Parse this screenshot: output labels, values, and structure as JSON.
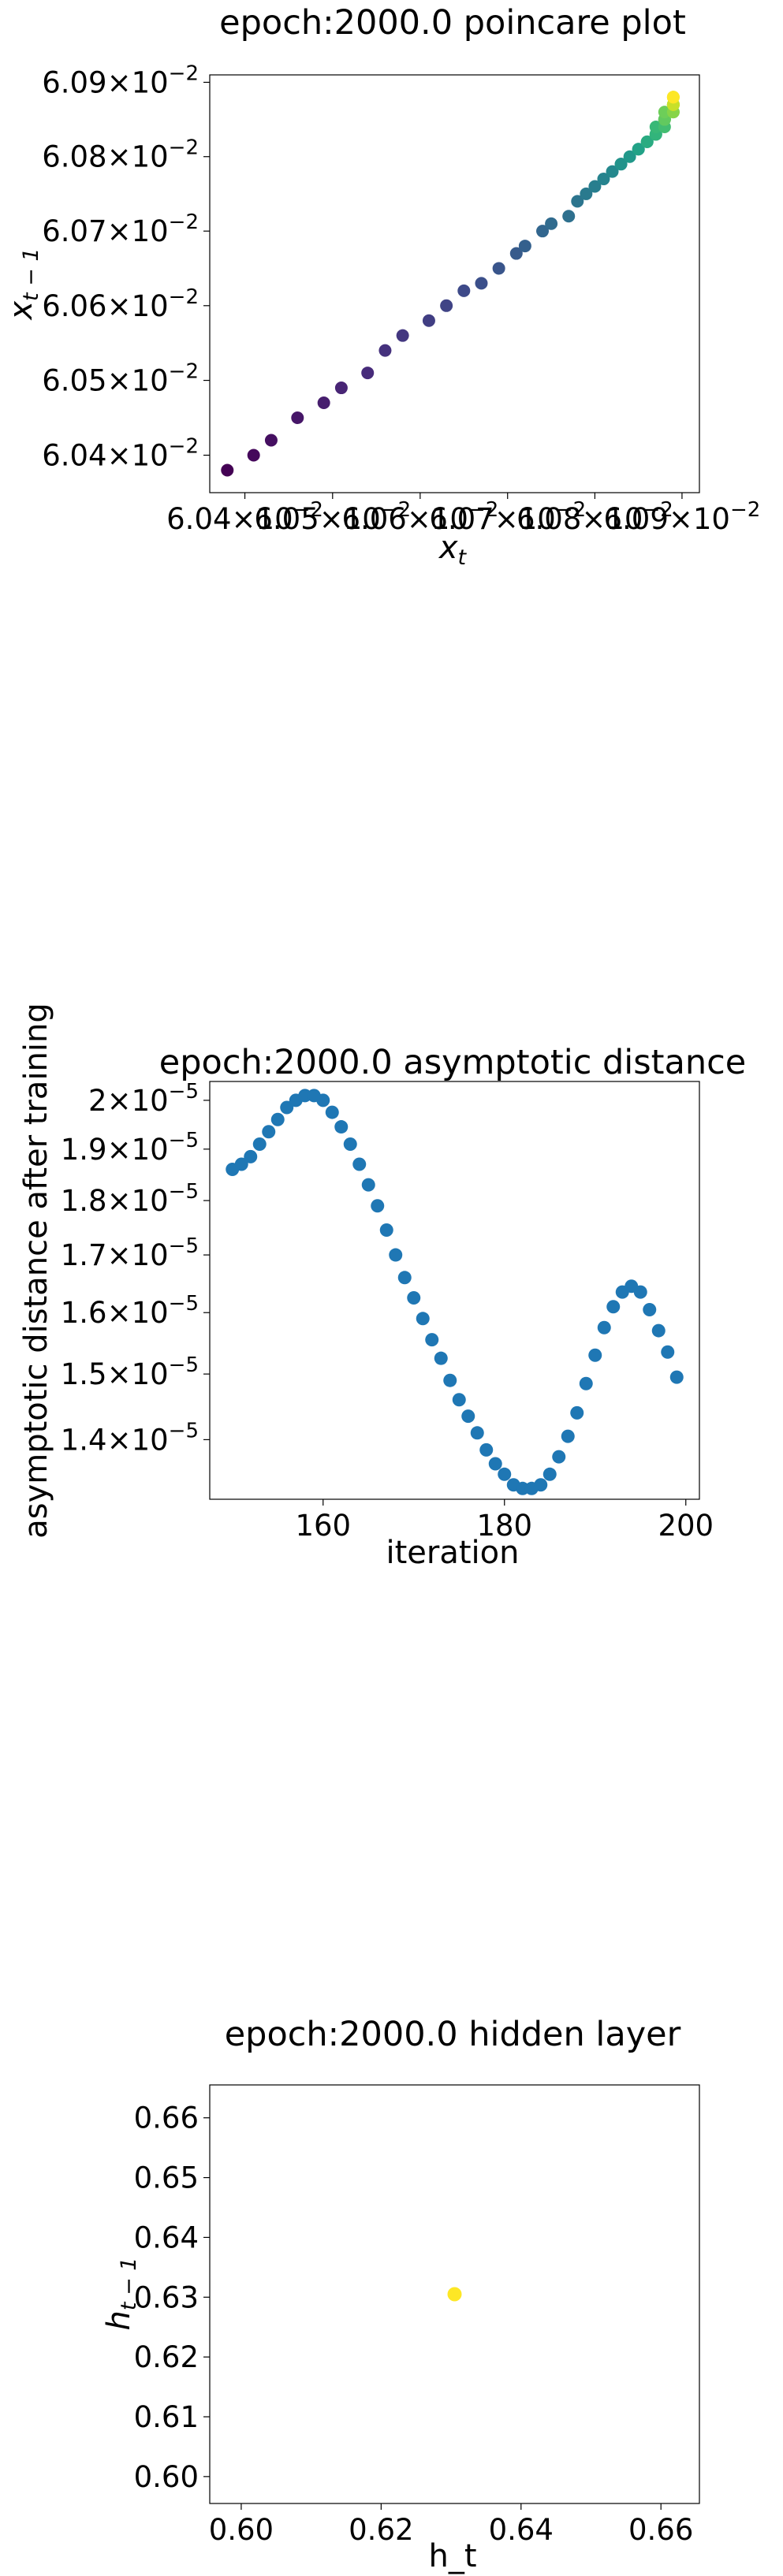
{
  "colors": {
    "viridis_start": "#440154",
    "viridis_end": "#fde725",
    "scatter_blue": "#1f77b4",
    "axes_edge": "#000000",
    "background": "#ffffff"
  },
  "chart_data": [
    {
      "type": "scatter",
      "title": "epoch:2000.0 poincare plot",
      "xlabel_base": "x",
      "xlabel_sub": "t",
      "ylabel_base": "x",
      "ylabel_sub": "t − 1",
      "xscale": "log",
      "yscale": "log",
      "xlim": [
        0.06036,
        0.06092
      ],
      "ylim": [
        0.06035,
        0.06091
      ],
      "xticks": [
        {
          "value": 0.0604,
          "mantissa": "6.04",
          "exp": "−2"
        },
        {
          "value": 0.0605,
          "mantissa": "6.05",
          "exp": "−2"
        },
        {
          "value": 0.0606,
          "mantissa": "6.06",
          "exp": "−2"
        },
        {
          "value": 0.0607,
          "mantissa": "6.07",
          "exp": "−2"
        },
        {
          "value": 0.0608,
          "mantissa": "6.08",
          "exp": "−2"
        },
        {
          "value": 0.0609,
          "mantissa": "6.09",
          "exp": "−2"
        }
      ],
      "yticks": [
        {
          "value": 0.0604,
          "mantissa": "6.04",
          "exp": "−2"
        },
        {
          "value": 0.0605,
          "mantissa": "6.05",
          "exp": "−2"
        },
        {
          "value": 0.0606,
          "mantissa": "6.06",
          "exp": "−2"
        },
        {
          "value": 0.0607,
          "mantissa": "6.07",
          "exp": "−2"
        },
        {
          "value": 0.0608,
          "mantissa": "6.08",
          "exp": "−2"
        },
        {
          "value": 0.0609,
          "mantissa": "6.09",
          "exp": "−2"
        }
      ],
      "colormap": "viridis",
      "x": [
        0.06038,
        0.06041,
        0.06043,
        0.06046,
        0.06049,
        0.06051,
        0.06054,
        0.06056,
        0.06058,
        0.06061,
        0.06063,
        0.06065,
        0.06067,
        0.06069,
        0.06071,
        0.06072,
        0.06074,
        0.06075,
        0.06077,
        0.06078,
        0.06079,
        0.0608,
        0.06081,
        0.06082,
        0.06083,
        0.06083,
        0.06084,
        0.06085,
        0.06085,
        0.06086,
        0.06086,
        0.06087,
        0.06087,
        0.06087,
        0.06088,
        0.06088,
        0.06088,
        0.06088,
        0.06088,
        0.06089,
        0.06089,
        0.06089,
        0.06089,
        0.06089,
        0.06089,
        0.06089,
        0.06089,
        0.06089,
        0.06089,
        0.06089
      ],
      "y": [
        0.06038,
        0.0604,
        0.06042,
        0.06045,
        0.06047,
        0.06049,
        0.06051,
        0.06054,
        0.06056,
        0.06058,
        0.0606,
        0.06062,
        0.06063,
        0.06065,
        0.06067,
        0.06068,
        0.0607,
        0.06071,
        0.06072,
        0.06074,
        0.06075,
        0.06076,
        0.06077,
        0.06078,
        0.06079,
        0.06079,
        0.0608,
        0.06081,
        0.06081,
        0.06082,
        0.06082,
        0.06083,
        0.06083,
        0.06084,
        0.06084,
        0.06085,
        0.06085,
        0.06085,
        0.06086,
        0.06086,
        0.06086,
        0.06087,
        0.06087,
        0.06087,
        0.06087,
        0.06087,
        0.06088,
        0.06088,
        0.06088,
        0.06088
      ]
    },
    {
      "type": "scatter",
      "title": "epoch:2000.0 asymptotic distance",
      "xlabel": "iteration",
      "ylabel": "asymptotic distance after training",
      "yscale": "log",
      "xlim": [
        147.5,
        201.5
      ],
      "ylim": [
        1.315e-05,
        2.04e-05
      ],
      "xticks": [
        {
          "value": 160,
          "label": "160"
        },
        {
          "value": 180,
          "label": "180"
        },
        {
          "value": 200,
          "label": "200"
        }
      ],
      "yticks": [
        {
          "value": 1.4e-05,
          "mantissa": "1.4",
          "exp": "−5"
        },
        {
          "value": 1.5e-05,
          "mantissa": "1.5",
          "exp": "−5"
        },
        {
          "value": 1.6e-05,
          "mantissa": "1.6",
          "exp": "−5"
        },
        {
          "value": 1.7e-05,
          "mantissa": "1.7",
          "exp": "−5"
        },
        {
          "value": 1.8e-05,
          "mantissa": "1.8",
          "exp": "−5"
        },
        {
          "value": 1.9e-05,
          "mantissa": "1.9",
          "exp": "−5"
        },
        {
          "value": 2e-05,
          "mantissa": "2",
          "exp": "−5"
        }
      ],
      "x": [
        150,
        151,
        152,
        153,
        154,
        155,
        156,
        157,
        158,
        159,
        160,
        161,
        162,
        163,
        164,
        165,
        166,
        167,
        168,
        169,
        170,
        171,
        172,
        173,
        174,
        175,
        176,
        177,
        178,
        179,
        180,
        181,
        182,
        183,
        184,
        185,
        186,
        187,
        188,
        189,
        190,
        191,
        192,
        193,
        194,
        195,
        196,
        197,
        198,
        199
      ],
      "y": [
        1.86e-05,
        1.87e-05,
        1.885e-05,
        1.91e-05,
        1.935e-05,
        1.96e-05,
        1.985e-05,
        2e-05,
        2.01e-05,
        2.01e-05,
        2e-05,
        1.975e-05,
        1.945e-05,
        1.91e-05,
        1.87e-05,
        1.83e-05,
        1.79e-05,
        1.745e-05,
        1.7e-05,
        1.66e-05,
        1.625e-05,
        1.59e-05,
        1.555e-05,
        1.525e-05,
        1.49e-05,
        1.46e-05,
        1.435e-05,
        1.41e-05,
        1.385e-05,
        1.365e-05,
        1.35e-05,
        1.335e-05,
        1.33e-05,
        1.33e-05,
        1.335e-05,
        1.35e-05,
        1.375e-05,
        1.405e-05,
        1.44e-05,
        1.485e-05,
        1.53e-05,
        1.575e-05,
        1.61e-05,
        1.635e-05,
        1.645e-05,
        1.635e-05,
        1.605e-05,
        1.57e-05,
        1.535e-05,
        1.495e-05
      ]
    },
    {
      "type": "scatter",
      "title": "epoch:2000.0 hidden layer",
      "xlabel": "h_t",
      "ylabel_base": "h",
      "ylabel_sub": "t − 1",
      "xlim": [
        0.5955,
        0.6655
      ],
      "ylim": [
        0.5955,
        0.6655
      ],
      "xticks": [
        {
          "value": 0.6,
          "label": "0.60"
        },
        {
          "value": 0.62,
          "label": "0.62"
        },
        {
          "value": 0.64,
          "label": "0.64"
        },
        {
          "value": 0.66,
          "label": "0.66"
        }
      ],
      "yticks": [
        {
          "value": 0.6,
          "label": "0.60"
        },
        {
          "value": 0.61,
          "label": "0.61"
        },
        {
          "value": 0.62,
          "label": "0.62"
        },
        {
          "value": 0.63,
          "label": "0.63"
        },
        {
          "value": 0.64,
          "label": "0.64"
        },
        {
          "value": 0.65,
          "label": "0.65"
        },
        {
          "value": 0.66,
          "label": "0.66"
        }
      ],
      "point_color": "#fde725",
      "x": [
        0.6305
      ],
      "y": [
        0.6305
      ]
    }
  ]
}
